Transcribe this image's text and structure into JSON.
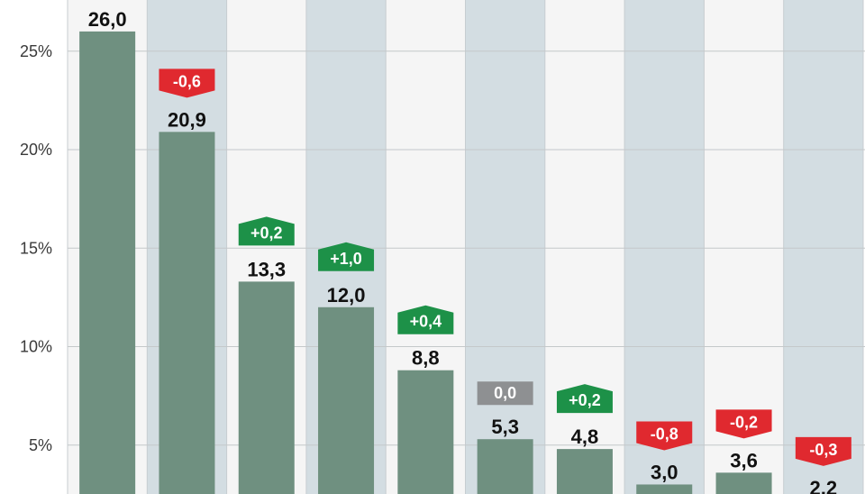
{
  "chart_data": {
    "type": "bar",
    "title": "",
    "xlabel": "",
    "ylabel": "",
    "ylim": [
      0,
      27.5
    ],
    "yticks": [
      "5%",
      "10%",
      "15%",
      "20%",
      "25%"
    ],
    "ytick_values": [
      5,
      10,
      15,
      20,
      25
    ],
    "grid": true,
    "values": [
      26.0,
      20.9,
      13.3,
      12.0,
      8.8,
      5.3,
      4.8,
      3.0,
      3.6,
      2.2
    ],
    "value_labels": [
      "26,0",
      "20,9",
      "13,3",
      "12,0",
      "8,8",
      "5,3",
      "4,8",
      "3,0",
      "3,6",
      "2,2"
    ],
    "change_values": [
      null,
      -0.6,
      0.2,
      1.0,
      0.4,
      0.0,
      0.2,
      -0.8,
      -0.2,
      -0.3
    ],
    "change_labels": [
      null,
      "-0,6",
      "+0,2",
      "+1,0",
      "+0,4",
      "0,0",
      "+0,2",
      "-0,8",
      "-0,2",
      "-0,3"
    ]
  },
  "colors": {
    "bar": "#6f9080",
    "column_light": "#f5f5f5",
    "column_dark": "#d3dde2",
    "grid": "#c4c8ca",
    "column_divider": "#c7cdd1",
    "increase": "#1d9148",
    "decrease": "#e0292f",
    "no_change": "#8e9092"
  }
}
